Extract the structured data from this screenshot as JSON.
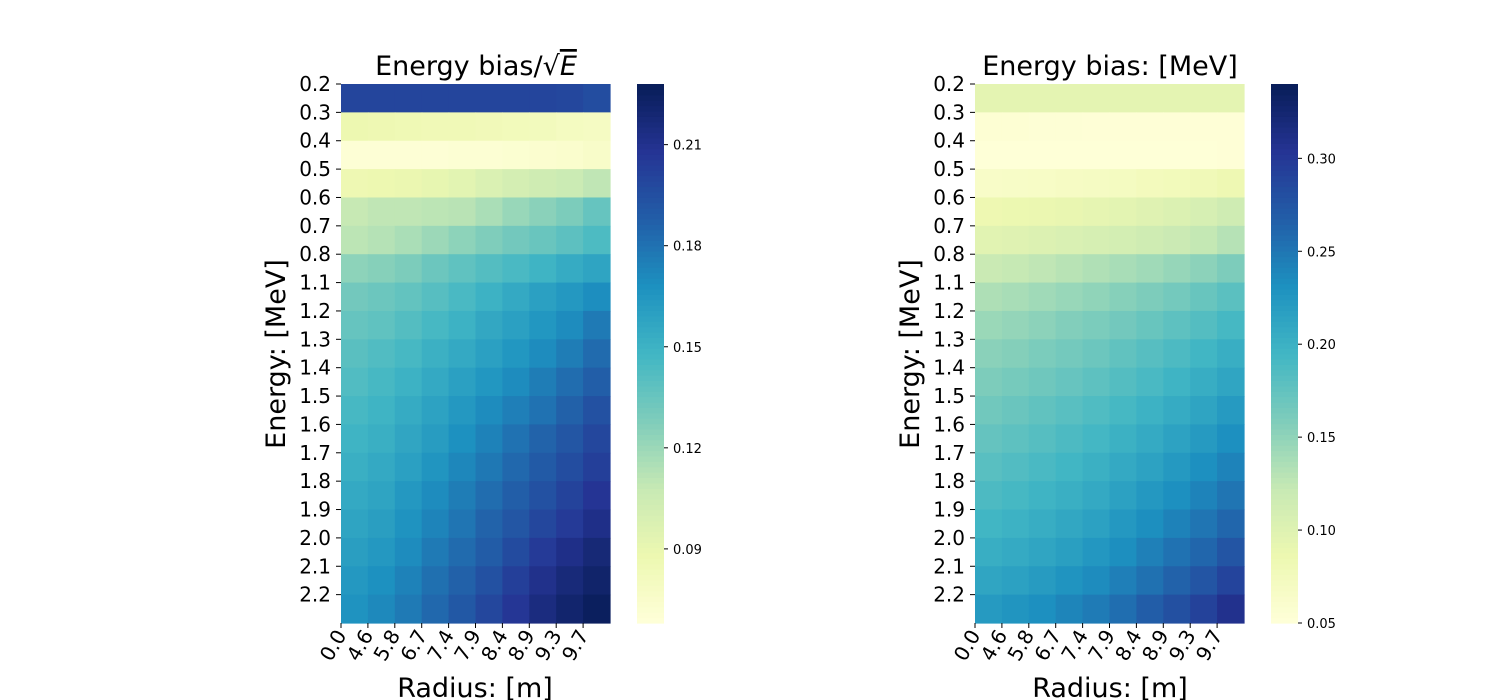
{
  "chart_data": [
    {
      "type": "heatmap",
      "title_text": "Energy bias/",
      "title_sqrt": "√",
      "title_var": "E",
      "xlabel": "Radius: [m]",
      "ylabel": "Energy: [MeV]",
      "x": [
        "0.0",
        "4.6",
        "5.8",
        "6.7",
        "7.4",
        "7.9",
        "8.4",
        "8.9",
        "9.3",
        "9.7"
      ],
      "y": [
        "0.2",
        "0.3",
        "0.4",
        "0.5",
        "0.6",
        "0.7",
        "0.8",
        "1.1",
        "1.2",
        "1.3",
        "1.4",
        "1.5",
        "1.6",
        "1.7",
        "1.8",
        "1.9",
        "2.0",
        "2.1",
        "2.2"
      ],
      "colorbar": {
        "vmin": 0.068,
        "vmax": 0.228,
        "ticks": [
          "0.09",
          "0.12",
          "0.15",
          "0.18",
          "0.21"
        ]
      },
      "colormap": "YlGnBu",
      "values": [
        [
          0.2,
          0.2,
          0.2,
          0.2,
          0.2,
          0.2,
          0.2,
          0.2,
          0.199,
          0.196
        ],
        [
          0.088,
          0.087,
          0.086,
          0.085,
          0.085,
          0.084,
          0.083,
          0.082,
          0.08,
          0.079
        ],
        [
          0.07,
          0.07,
          0.07,
          0.07,
          0.071,
          0.071,
          0.072,
          0.073,
          0.074,
          0.076
        ],
        [
          0.087,
          0.088,
          0.089,
          0.091,
          0.094,
          0.098,
          0.101,
          0.104,
          0.106,
          0.11
        ],
        [
          0.108,
          0.11,
          0.11,
          0.111,
          0.112,
          0.116,
          0.121,
          0.125,
          0.129,
          0.136
        ],
        [
          0.111,
          0.113,
          0.116,
          0.12,
          0.124,
          0.128,
          0.132,
          0.135,
          0.139,
          0.144
        ],
        [
          0.124,
          0.126,
          0.129,
          0.134,
          0.138,
          0.142,
          0.145,
          0.149,
          0.154,
          0.158
        ],
        [
          0.132,
          0.134,
          0.137,
          0.141,
          0.145,
          0.15,
          0.155,
          0.16,
          0.164,
          0.169
        ],
        [
          0.136,
          0.138,
          0.142,
          0.146,
          0.15,
          0.156,
          0.16,
          0.165,
          0.17,
          0.177
        ],
        [
          0.14,
          0.143,
          0.146,
          0.151,
          0.155,
          0.16,
          0.165,
          0.17,
          0.176,
          0.183
        ],
        [
          0.143,
          0.146,
          0.15,
          0.155,
          0.16,
          0.165,
          0.17,
          0.176,
          0.182,
          0.188
        ],
        [
          0.146,
          0.149,
          0.154,
          0.159,
          0.164,
          0.17,
          0.175,
          0.18,
          0.187,
          0.194
        ],
        [
          0.149,
          0.152,
          0.157,
          0.162,
          0.168,
          0.174,
          0.18,
          0.186,
          0.192,
          0.199
        ],
        [
          0.152,
          0.155,
          0.16,
          0.166,
          0.172,
          0.178,
          0.184,
          0.19,
          0.196,
          0.203
        ],
        [
          0.155,
          0.158,
          0.164,
          0.17,
          0.176,
          0.182,
          0.188,
          0.194,
          0.201,
          0.208
        ],
        [
          0.158,
          0.161,
          0.167,
          0.173,
          0.179,
          0.186,
          0.192,
          0.199,
          0.205,
          0.212
        ],
        [
          0.161,
          0.164,
          0.17,
          0.177,
          0.183,
          0.189,
          0.197,
          0.205,
          0.212,
          0.218
        ],
        [
          0.164,
          0.168,
          0.174,
          0.181,
          0.187,
          0.194,
          0.203,
          0.211,
          0.217,
          0.222
        ],
        [
          0.167,
          0.171,
          0.177,
          0.184,
          0.191,
          0.199,
          0.207,
          0.215,
          0.221,
          0.226
        ]
      ]
    },
    {
      "type": "heatmap",
      "title": "Energy bias: [MeV]",
      "xlabel": "Radius: [m]",
      "ylabel": "Energy: [MeV]",
      "x": [
        "0.0",
        "4.6",
        "5.8",
        "6.7",
        "7.4",
        "7.9",
        "8.4",
        "8.9",
        "9.3",
        "9.7"
      ],
      "y": [
        "0.2",
        "0.3",
        "0.4",
        "0.5",
        "0.6",
        "0.7",
        "0.8",
        "1.1",
        "1.2",
        "1.3",
        "1.4",
        "1.5",
        "1.6",
        "1.7",
        "1.8",
        "1.9",
        "2.0",
        "2.1",
        "2.2"
      ],
      "colorbar": {
        "vmin": 0.05,
        "vmax": 0.34,
        "ticks": [
          "0.05",
          "0.10",
          "0.15",
          "0.20",
          "0.25",
          "0.30"
        ]
      },
      "colormap": "YlGnBu",
      "values": [
        [
          0.095,
          0.095,
          0.095,
          0.095,
          0.095,
          0.095,
          0.095,
          0.095,
          0.095,
          0.095
        ],
        [
          0.055,
          0.055,
          0.054,
          0.054,
          0.053,
          0.053,
          0.053,
          0.053,
          0.053,
          0.053
        ],
        [
          0.052,
          0.052,
          0.052,
          0.052,
          0.052,
          0.052,
          0.052,
          0.052,
          0.052,
          0.053
        ],
        [
          0.065,
          0.066,
          0.067,
          0.069,
          0.07,
          0.072,
          0.075,
          0.077,
          0.08,
          0.084
        ],
        [
          0.085,
          0.087,
          0.088,
          0.09,
          0.093,
          0.096,
          0.1,
          0.103,
          0.108,
          0.115
        ],
        [
          0.098,
          0.1,
          0.102,
          0.105,
          0.108,
          0.111,
          0.115,
          0.119,
          0.124,
          0.131
        ],
        [
          0.12,
          0.123,
          0.126,
          0.13,
          0.134,
          0.138,
          0.142,
          0.147,
          0.152,
          0.16
        ],
        [
          0.135,
          0.138,
          0.142,
          0.146,
          0.15,
          0.155,
          0.16,
          0.165,
          0.172,
          0.18
        ],
        [
          0.145,
          0.148,
          0.152,
          0.157,
          0.161,
          0.166,
          0.172,
          0.178,
          0.184,
          0.192
        ],
        [
          0.153,
          0.156,
          0.161,
          0.165,
          0.17,
          0.176,
          0.182,
          0.188,
          0.195,
          0.203
        ],
        [
          0.16,
          0.164,
          0.168,
          0.173,
          0.178,
          0.184,
          0.19,
          0.197,
          0.204,
          0.212
        ],
        [
          0.167,
          0.171,
          0.176,
          0.181,
          0.186,
          0.192,
          0.199,
          0.206,
          0.213,
          0.222
        ],
        [
          0.174,
          0.178,
          0.183,
          0.188,
          0.193,
          0.2,
          0.207,
          0.215,
          0.222,
          0.232
        ],
        [
          0.181,
          0.185,
          0.19,
          0.195,
          0.201,
          0.208,
          0.215,
          0.223,
          0.232,
          0.241
        ],
        [
          0.188,
          0.192,
          0.197,
          0.202,
          0.208,
          0.216,
          0.224,
          0.232,
          0.241,
          0.251
        ],
        [
          0.195,
          0.199,
          0.204,
          0.21,
          0.216,
          0.224,
          0.233,
          0.242,
          0.251,
          0.262
        ],
        [
          0.203,
          0.207,
          0.212,
          0.218,
          0.225,
          0.233,
          0.243,
          0.253,
          0.262,
          0.275
        ],
        [
          0.212,
          0.216,
          0.221,
          0.228,
          0.235,
          0.244,
          0.254,
          0.265,
          0.275,
          0.29
        ],
        [
          0.222,
          0.227,
          0.232,
          0.24,
          0.247,
          0.256,
          0.268,
          0.28,
          0.292,
          0.308
        ]
      ]
    }
  ]
}
